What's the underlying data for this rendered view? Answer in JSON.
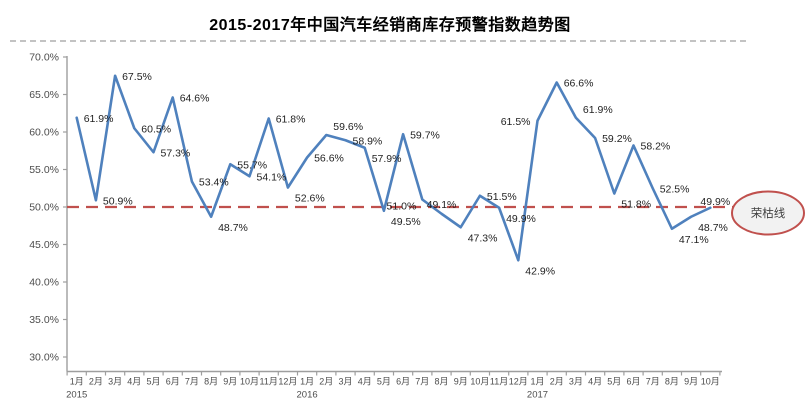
{
  "colors": {
    "line": "#4F81BD",
    "threshold": "#C0504D",
    "axis_line": "#9e9e9e",
    "axis_text": "#4d4d4d",
    "point_label_text": "#1f1f1f",
    "ellipse_fill": "#F2F2F2",
    "ellipse_text": "#3f3f3f",
    "separator": "#c3c3c3"
  },
  "chart_data": {
    "type": "line",
    "title": "2015-2017年中国汽车经销商库存预警指数趋势图",
    "month_labels": [
      "1月",
      "2月",
      "3月",
      "4月",
      "5月",
      "6月",
      "7月",
      "8月",
      "9月",
      "10月",
      "11月",
      "12月",
      "1月",
      "2月",
      "3月",
      "4月",
      "5月",
      "6月",
      "7月",
      "8月",
      "9月",
      "10月",
      "11月",
      "12月",
      "1月",
      "2月",
      "3月",
      "4月",
      "5月",
      "6月",
      "7月",
      "8月",
      "9月",
      "10月"
    ],
    "year_labels": [
      {
        "text": "2015",
        "index": 0
      },
      {
        "text": "2016",
        "index": 12
      },
      {
        "text": "2017",
        "index": 24
      }
    ],
    "values": [
      61.9,
      50.9,
      67.5,
      60.5,
      57.3,
      64.6,
      53.4,
      48.7,
      55.7,
      54.1,
      61.8,
      52.6,
      56.6,
      59.6,
      58.9,
      57.9,
      49.5,
      59.7,
      51.0,
      49.1,
      47.3,
      51.5,
      49.9,
      42.9,
      61.5,
      66.6,
      61.9,
      59.2,
      51.8,
      58.2,
      52.5,
      47.1,
      48.7,
      49.9
    ],
    "point_labels": [
      "61.9%",
      "50.9%",
      "67.5%",
      "60.5%",
      "57.3%",
      "64.6%",
      "53.4%",
      "48.7%",
      "55.7%",
      "54.1%",
      "61.8%",
      "52.6%",
      "56.6%",
      "59.6%",
      "58.9%",
      "57.9%",
      "49.5%",
      "59.7%",
      "51.0%",
      "49.1%",
      "47.3%",
      "51.5%",
      "49.9%",
      "42.9%",
      "61.5%",
      "66.6%",
      "61.9%",
      "59.2%",
      "51.8%",
      "58.2%",
      "52.5%",
      "47.1%",
      "48.7%",
      "49.9%"
    ],
    "label_placements": [
      "r",
      "r",
      "r",
      "r",
      "r",
      "r",
      "r",
      "rb",
      "r",
      "r",
      "r",
      "rb",
      "r",
      "ra",
      "r",
      "rb",
      "rb",
      "r",
      "lb",
      "a",
      "rb",
      "r",
      "rb",
      "rb",
      "l",
      "r",
      "ra",
      "r",
      "rb",
      "r",
      "r",
      "rb",
      "rb",
      "am"
    ],
    "ylim": [
      30,
      70
    ],
    "ytick_labels": [
      "70.0%",
      "65.0%",
      "60.0%",
      "55.0%",
      "50.0%",
      "45.0%",
      "40.0%",
      "35.0%",
      "30.0%"
    ],
    "ytick_values": [
      70,
      65,
      60,
      55,
      50,
      45,
      40,
      35,
      30
    ],
    "grid": false,
    "legend": "none",
    "threshold": {
      "value": 50.0,
      "label": "荣枯线"
    }
  }
}
